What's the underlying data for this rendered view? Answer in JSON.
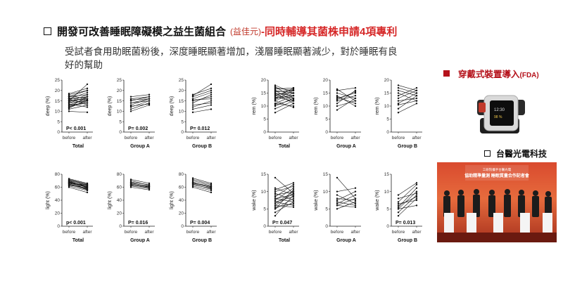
{
  "header": {
    "title_main": "開發可改善睡眠障礙模之益生菌組合",
    "title_paren": "(益佳元)",
    "title_red": "-同時輔導其菌株申請4項專利"
  },
  "subtitle": "受試者食用助眠菌粉後，深度睡眠顯著增加，淺層睡眠顯著減少，對於睡眠有良好的幫助",
  "sidebar": {
    "device_title": "穿戴式裝置導入",
    "device_title_suffix": "(FDA)",
    "company": "台醫光電科技",
    "press_banner": "工研院攜手台醫光電\n協助精準量測 睡眠質量合作記者會"
  },
  "chart_data": [
    {
      "type": "line",
      "ylabel": "deep (%)",
      "group": "Total",
      "p": "P< 0.001",
      "ylim": [
        0,
        25
      ],
      "yticks": [
        0,
        5,
        10,
        15,
        20,
        25
      ],
      "categories": [
        "before",
        "after"
      ],
      "pairs": [
        [
          10,
          9.5
        ],
        [
          11,
          13
        ],
        [
          12,
          15
        ],
        [
          12.5,
          14
        ],
        [
          13,
          16
        ],
        [
          13.5,
          12
        ],
        [
          14,
          17
        ],
        [
          14,
          15
        ],
        [
          14.5,
          18
        ],
        [
          15,
          16
        ],
        [
          15.5,
          14
        ],
        [
          16,
          19
        ],
        [
          16,
          17
        ],
        [
          16.5,
          15
        ],
        [
          17,
          20
        ],
        [
          17,
          18
        ],
        [
          17.5,
          16
        ],
        [
          18,
          20
        ],
        [
          18.5,
          21
        ],
        [
          15,
          23
        ],
        [
          13,
          14
        ],
        [
          12,
          17
        ],
        [
          11.5,
          15.5
        ],
        [
          16,
          13
        ]
      ]
    },
    {
      "type": "line",
      "ylabel": "deep (%)",
      "group": "Group A",
      "p": "P= 0.002",
      "ylim": [
        0,
        25
      ],
      "yticks": [
        0,
        5,
        10,
        15,
        20,
        25
      ],
      "categories": [
        "before",
        "after"
      ],
      "pairs": [
        [
          10,
          13
        ],
        [
          11,
          14
        ],
        [
          12,
          15
        ],
        [
          13,
          16
        ],
        [
          14,
          15
        ],
        [
          15,
          17
        ],
        [
          15.5,
          16
        ],
        [
          16,
          17
        ],
        [
          17,
          18
        ],
        [
          14,
          16
        ],
        [
          12.5,
          13.5
        ]
      ]
    },
    {
      "type": "line",
      "ylabel": "deep (%)",
      "group": "Group B",
      "p": "P= 0.012",
      "ylim": [
        0,
        25
      ],
      "yticks": [
        0,
        5,
        10,
        15,
        20,
        25
      ],
      "categories": [
        "before",
        "after"
      ],
      "pairs": [
        [
          9.5,
          11
        ],
        [
          11,
          13
        ],
        [
          12,
          15
        ],
        [
          13,
          14
        ],
        [
          14,
          18
        ],
        [
          15,
          17
        ],
        [
          16,
          19
        ],
        [
          17,
          20
        ],
        [
          17.5,
          23
        ],
        [
          18,
          21
        ],
        [
          15.5,
          16
        ]
      ]
    },
    {
      "type": "line",
      "ylabel": "rem (%)",
      "group": "Total",
      "p": "",
      "ylim": [
        0,
        20
      ],
      "yticks": [
        0,
        5,
        10,
        15,
        20
      ],
      "categories": [
        "before",
        "after"
      ],
      "pairs": [
        [
          7.5,
          11
        ],
        [
          9,
          12
        ],
        [
          10,
          13
        ],
        [
          11,
          14
        ],
        [
          12,
          15
        ],
        [
          12.5,
          16
        ],
        [
          13,
          17
        ],
        [
          13.5,
          12
        ],
        [
          14,
          13
        ],
        [
          14.5,
          15
        ],
        [
          15,
          14
        ],
        [
          15.5,
          16
        ],
        [
          16,
          15
        ],
        [
          16.5,
          17
        ],
        [
          17,
          16
        ],
        [
          17.5,
          13
        ],
        [
          18,
          15
        ],
        [
          12,
          9.5
        ],
        [
          11,
          10
        ],
        [
          10.5,
          12.5
        ],
        [
          13,
          14
        ],
        [
          15,
          11
        ],
        [
          16,
          12
        ],
        [
          14,
          16.5
        ]
      ]
    },
    {
      "type": "line",
      "ylabel": "rem (%)",
      "group": "Group A",
      "p": "",
      "ylim": [
        0,
        20
      ],
      "yticks": [
        0,
        5,
        10,
        15,
        20
      ],
      "categories": [
        "before",
        "after"
      ],
      "pairs": [
        [
          8.5,
          13
        ],
        [
          10,
          12
        ],
        [
          11,
          16
        ],
        [
          12,
          14
        ],
        [
          13,
          15
        ],
        [
          14,
          10
        ],
        [
          15,
          13
        ],
        [
          16,
          17
        ],
        [
          16.5,
          12
        ],
        [
          12.5,
          15.5
        ],
        [
          13.5,
          11
        ]
      ]
    },
    {
      "type": "line",
      "ylabel": "rem (%)",
      "group": "Group B",
      "p": "",
      "ylim": [
        0,
        20
      ],
      "yticks": [
        0,
        5,
        10,
        15,
        20
      ],
      "categories": [
        "before",
        "after"
      ],
      "pairs": [
        [
          7.5,
          11
        ],
        [
          9,
          14
        ],
        [
          11,
          15
        ],
        [
          12,
          13
        ],
        [
          13,
          16
        ],
        [
          14,
          17
        ],
        [
          15,
          12
        ],
        [
          16,
          14
        ],
        [
          17,
          15
        ],
        [
          18,
          16
        ],
        [
          10.5,
          12
        ]
      ]
    },
    {
      "type": "line",
      "ylabel": "light (%)",
      "group": "Total",
      "p": "p< 0.001",
      "ylim": [
        0,
        80
      ],
      "yticks": [
        0,
        20,
        40,
        60,
        80
      ],
      "categories": [
        "before",
        "after"
      ],
      "pairs": [
        [
          60,
          52
        ],
        [
          62,
          55
        ],
        [
          64,
          57
        ],
        [
          65,
          58
        ],
        [
          66,
          60
        ],
        [
          67,
          61
        ],
        [
          68,
          62
        ],
        [
          69,
          60
        ],
        [
          70,
          63
        ],
        [
          71,
          64
        ],
        [
          72,
          65
        ],
        [
          73,
          66
        ],
        [
          63,
          59
        ],
        [
          66,
          64
        ],
        [
          68,
          57
        ],
        [
          70,
          59
        ],
        [
          65,
          56
        ],
        [
          67,
          62
        ]
      ]
    },
    {
      "type": "line",
      "ylabel": "light (%)",
      "group": "Group A",
      "p": "P= 0.016",
      "ylim": [
        0,
        80
      ],
      "yticks": [
        0,
        20,
        40,
        60,
        80
      ],
      "categories": [
        "before",
        "after"
      ],
      "pairs": [
        [
          60,
          56
        ],
        [
          62,
          58
        ],
        [
          64,
          59
        ],
        [
          65,
          60
        ],
        [
          66,
          62
        ],
        [
          67,
          61
        ],
        [
          68,
          64
        ],
        [
          70,
          63
        ],
        [
          72,
          66
        ],
        [
          63,
          61
        ]
      ]
    },
    {
      "type": "line",
      "ylabel": "light (%)",
      "group": "Group B",
      "p": "P= 0.004",
      "ylim": [
        0,
        80
      ],
      "yticks": [
        0,
        20,
        40,
        60,
        80
      ],
      "categories": [
        "before",
        "after"
      ],
      "pairs": [
        [
          60,
          52
        ],
        [
          62,
          55
        ],
        [
          64,
          58
        ],
        [
          65,
          57
        ],
        [
          66,
          60
        ],
        [
          68,
          59
        ],
        [
          70,
          62
        ],
        [
          72,
          64
        ],
        [
          74,
          66
        ],
        [
          67,
          61
        ]
      ]
    },
    {
      "type": "line",
      "ylabel": "wake (%)",
      "group": "Total",
      "p": "P= 0.047",
      "ylim": [
        0,
        15
      ],
      "yticks": [
        0,
        5,
        10,
        15
      ],
      "categories": [
        "before",
        "after"
      ],
      "pairs": [
        [
          3,
          9
        ],
        [
          4,
          7
        ],
        [
          5,
          8
        ],
        [
          5.5,
          6.5
        ],
        [
          6,
          9.5
        ],
        [
          6.5,
          10
        ],
        [
          7,
          8.5
        ],
        [
          7.5,
          11
        ],
        [
          8,
          9
        ],
        [
          8.5,
          12
        ],
        [
          9,
          10
        ],
        [
          9.5,
          7.5
        ],
        [
          10,
          11.5
        ],
        [
          10.5,
          12.5
        ],
        [
          11,
          9
        ],
        [
          14,
          9.5
        ],
        [
          6,
          5.5
        ],
        [
          7,
          6
        ],
        [
          8,
          7
        ],
        [
          5,
          10.5
        ]
      ]
    },
    {
      "type": "line",
      "ylabel": "wake (%)",
      "group": "Group A",
      "p": "",
      "ylim": [
        0,
        15
      ],
      "yticks": [
        0,
        5,
        10,
        15
      ],
      "categories": [
        "before",
        "after"
      ],
      "pairs": [
        [
          5,
          7
        ],
        [
          6,
          8
        ],
        [
          6.5,
          9
        ],
        [
          7,
          6
        ],
        [
          7.5,
          10
        ],
        [
          8,
          7.5
        ],
        [
          9,
          6.5
        ],
        [
          10,
          11
        ],
        [
          14,
          8
        ],
        [
          6,
          5.5
        ]
      ]
    },
    {
      "type": "line",
      "ylabel": "wake (%)",
      "group": "Group B",
      "p": "P= 0.013",
      "ylim": [
        0,
        15
      ],
      "yticks": [
        0,
        5,
        10,
        15
      ],
      "categories": [
        "before",
        "after"
      ],
      "pairs": [
        [
          3,
          8
        ],
        [
          4,
          9
        ],
        [
          5,
          10
        ],
        [
          5.5,
          11
        ],
        [
          6,
          8.5
        ],
        [
          7,
          12
        ],
        [
          8,
          9.5
        ],
        [
          9,
          12.5
        ],
        [
          5,
          6
        ],
        [
          6.5,
          7.5
        ]
      ]
    }
  ]
}
